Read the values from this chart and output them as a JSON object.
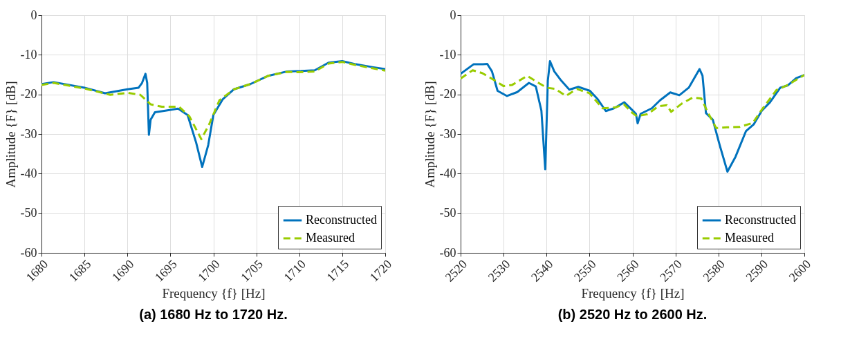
{
  "chart_data": [
    {
      "type": "line",
      "title": "(a) 1680 Hz to 1720 Hz.",
      "xlabel": "Frequency {f} [Hz]",
      "ylabel": "Amplitude {F} [dB]",
      "xlim": [
        1680,
        1720
      ],
      "xticks": [
        1680,
        1685,
        1690,
        1695,
        1700,
        1705,
        1710,
        1715,
        1720
      ],
      "ylim": [
        -60,
        0
      ],
      "yticks": [
        -60,
        -50,
        -40,
        -30,
        -20,
        -10,
        0
      ],
      "grid": true,
      "legend": "bottom right",
      "series": [
        {
          "name": "Reconstructed",
          "color": "#0072bd",
          "line_style": "solid",
          "x": [
            1680,
            1681.4,
            1685,
            1687.4,
            1690,
            1691.3,
            1691.7,
            1692.1,
            1692.3,
            1692.5,
            1692.7,
            1693.2,
            1694.4,
            1695.9,
            1697.0,
            1698.0,
            1698.7,
            1699.4,
            1700,
            1701.1,
            1702.4,
            1704.3,
            1706.4,
            1708.6,
            1710.2,
            1711.8,
            1713.4,
            1715.0,
            1716.6,
            1718.5,
            1720
          ],
          "values": [
            -17.4,
            -16.9,
            -18.3,
            -19.7,
            -18.7,
            -18.3,
            -17.1,
            -14.8,
            -17.1,
            -30.2,
            -26.4,
            -24.5,
            -24.1,
            -23.6,
            -25.2,
            -32.2,
            -38.3,
            -32.8,
            -25.2,
            -21.2,
            -18.7,
            -17.4,
            -15.3,
            -14.2,
            -14.1,
            -13.9,
            -12.0,
            -11.6,
            -12.4,
            -13.1,
            -13.6
          ]
        },
        {
          "name": "Measured",
          "color": "#99cc00",
          "line_style": "dashed",
          "x": [
            1680,
            1681.4,
            1685,
            1688,
            1690,
            1691.5,
            1692.7,
            1694,
            1696,
            1697.2,
            1698.6,
            1699.5,
            1700.7,
            1702.4,
            1704.3,
            1706.4,
            1708.6,
            1710,
            1711.8,
            1713.4,
            1715,
            1716.6,
            1718.5,
            1720
          ],
          "values": [
            -17.6,
            -17.1,
            -18.5,
            -20.1,
            -19.6,
            -20.1,
            -22.5,
            -23.1,
            -23.1,
            -25.5,
            -31.3,
            -27.6,
            -21.5,
            -18.7,
            -17.4,
            -15.3,
            -14.3,
            -14.4,
            -14.2,
            -12.2,
            -11.8,
            -12.6,
            -13.4,
            -14.0
          ]
        }
      ]
    },
    {
      "type": "line",
      "title": "(b) 2520 Hz to 2600 Hz.",
      "xlabel": "Frequency {f} [Hz]",
      "ylabel": "Amplitude {F} [dB]",
      "xlim": [
        2520,
        2600
      ],
      "xticks": [
        2520,
        2530,
        2540,
        2550,
        2560,
        2570,
        2580,
        2590,
        2600
      ],
      "ylim": [
        -60,
        0
      ],
      "yticks": [
        -60,
        -50,
        -40,
        -30,
        -20,
        -10,
        0
      ],
      "grid": true,
      "legend": "bottom right",
      "series": [
        {
          "name": "Reconstructed",
          "color": "#0072bd",
          "line_style": "solid",
          "x": [
            2520,
            2523,
            2525.2,
            2526.2,
            2527.3,
            2528.6,
            2530.8,
            2533.2,
            2535.9,
            2537.5,
            2538.8,
            2539.7,
            2540.3,
            2540.8,
            2541.8,
            2543.4,
            2545.3,
            2547.4,
            2550.1,
            2551.9,
            2553.8,
            2555.7,
            2558.1,
            2560,
            2560.8,
            2561.2,
            2561.9,
            2564.5,
            2566.4,
            2568.8,
            2570.9,
            2573.1,
            2575.6,
            2576.3,
            2577.1,
            2578.7,
            2580.3,
            2582.1,
            2584,
            2586.4,
            2588.2,
            2590.1,
            2592,
            2594.4,
            2596.2,
            2598.1,
            2600
          ],
          "values": [
            -14.8,
            -12.4,
            -12.4,
            -12.3,
            -14.2,
            -19.1,
            -20.4,
            -19.4,
            -17.1,
            -18.0,
            -24.1,
            -38.9,
            -16.5,
            -11.6,
            -14.2,
            -16.5,
            -18.8,
            -18.1,
            -19.1,
            -21.2,
            -24.2,
            -23.5,
            -22.0,
            -24.0,
            -24.9,
            -27.3,
            -24.9,
            -23.5,
            -21.5,
            -19.5,
            -20.2,
            -18.3,
            -13.6,
            -15.3,
            -24.7,
            -26.4,
            -32.8,
            -39.5,
            -35.7,
            -29.3,
            -27.6,
            -24.1,
            -22.0,
            -18.3,
            -17.7,
            -15.9,
            -15.1
          ]
        },
        {
          "name": "Measured",
          "color": "#99cc00",
          "line_style": "dashed",
          "x": [
            2520,
            2522.8,
            2525,
            2528,
            2530,
            2532,
            2535.5,
            2538,
            2540,
            2542,
            2544.5,
            2547,
            2550,
            2553,
            2556,
            2558,
            2560,
            2561,
            2563.5,
            2566,
            2568,
            2569,
            2571.5,
            2574,
            2576,
            2577.5,
            2579.5,
            2582,
            2585,
            2588,
            2590,
            2593.5,
            2596,
            2600
          ],
          "values": [
            -16.0,
            -13.9,
            -14.6,
            -16.5,
            -17.9,
            -17.6,
            -15.3,
            -17.0,
            -18.3,
            -18.6,
            -20.4,
            -18.6,
            -19.7,
            -23.5,
            -23.3,
            -22.5,
            -24.7,
            -25.5,
            -25.0,
            -23.0,
            -22.7,
            -24.4,
            -22.3,
            -20.8,
            -21.0,
            -24.5,
            -28.5,
            -28.3,
            -28.2,
            -27.2,
            -24.0,
            -18.9,
            -17.7,
            -15.1
          ]
        }
      ]
    }
  ]
}
